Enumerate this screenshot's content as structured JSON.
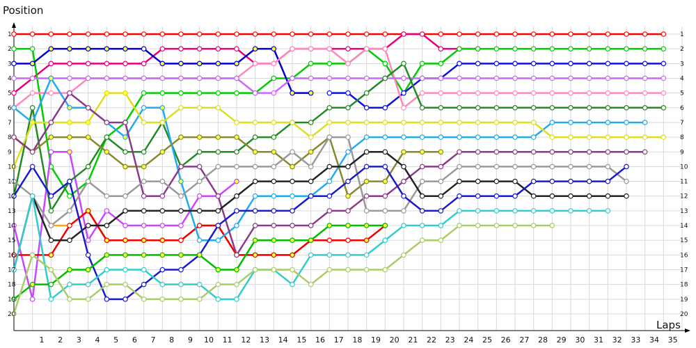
{
  "chart_data": {
    "type": "line",
    "ylabel": "Position",
    "xlabel": "Laps",
    "x_ticks": [
      1,
      2,
      3,
      4,
      5,
      6,
      7,
      8,
      9,
      10,
      11,
      12,
      13,
      14,
      15,
      16,
      17,
      18,
      19,
      20,
      21,
      22,
      23,
      24,
      25,
      26,
      27,
      28,
      29,
      30,
      31,
      32,
      33,
      34,
      35
    ],
    "y_ticks": [
      1,
      2,
      3,
      4,
      5,
      6,
      7,
      8,
      9,
      10,
      11,
      12,
      13,
      14,
      15,
      16,
      17,
      18,
      19,
      20
    ],
    "xlim": [
      0,
      36
    ],
    "ylim": [
      1,
      20
    ],
    "y_inverted": true,
    "grid": true,
    "colors": {
      "grid": "#d9d9d9",
      "marker_fill": "#ffffff",
      "pit_marker_fill": "#ffff44",
      "axis": "#000000"
    },
    "series": [
      {
        "color": "#ff0000",
        "values": [
          1,
          1,
          1,
          1,
          1,
          1,
          1,
          1,
          1,
          1,
          1,
          1,
          1,
          1,
          1,
          1,
          1,
          1,
          1,
          1,
          1,
          1,
          1,
          1,
          1,
          1,
          1,
          1,
          1,
          1,
          1,
          1,
          1,
          1,
          1,
          1
        ],
        "pit_laps": []
      },
      {
        "color": "#e6007a",
        "values": [
          5,
          4,
          3,
          3,
          3,
          3,
          3,
          3,
          2,
          2,
          2,
          2,
          2,
          3,
          3,
          2,
          2,
          2,
          2,
          2,
          2,
          1,
          1,
          2,
          2,
          2,
          null,
          null,
          null,
          null,
          null,
          null,
          null,
          null,
          null,
          null
        ],
        "pit_laps": []
      },
      {
        "color": "#00cc00",
        "values": [
          2,
          2,
          10,
          12,
          11,
          8,
          7,
          5,
          5,
          5,
          5,
          5,
          5,
          5,
          4,
          4,
          3,
          3,
          3,
          2,
          3,
          5,
          3,
          3,
          2,
          2,
          2,
          2,
          2,
          2,
          2,
          2,
          2,
          2,
          2,
          2
        ],
        "pit_laps": []
      },
      {
        "color": "#0000cc",
        "values": [
          3,
          3,
          2,
          2,
          2,
          2,
          2,
          2,
          3,
          3,
          3,
          3,
          3,
          2,
          2,
          5,
          5,
          null,
          null,
          null,
          null,
          null,
          null,
          null,
          null,
          null,
          null,
          null,
          null,
          null,
          null,
          null,
          null,
          null,
          null,
          null
        ],
        "pit_laps": [
          1,
          2,
          3,
          4,
          5,
          6,
          8,
          9,
          10,
          11,
          12,
          13,
          14,
          15,
          16
        ]
      },
      {
        "color": "#1010dd",
        "values": [
          null,
          null,
          null,
          null,
          null,
          null,
          null,
          null,
          null,
          null,
          null,
          null,
          null,
          null,
          null,
          null,
          null,
          5,
          5,
          6,
          6,
          5,
          4,
          4,
          3,
          3,
          3,
          3,
          3,
          3,
          3,
          3,
          3,
          3,
          3,
          3
        ],
        "pit_laps": []
      },
      {
        "color": "#ff88bb",
        "values": [
          6,
          5,
          5,
          5,
          4,
          4,
          4,
          4,
          4,
          4,
          4,
          4,
          4,
          3,
          3,
          2,
          2,
          2,
          3,
          2,
          2,
          6,
          5,
          5,
          5,
          5,
          5,
          5,
          5,
          5,
          5,
          5,
          5,
          5,
          5,
          5
        ],
        "pit_laps": []
      },
      {
        "color": "#cc66ff",
        "values": [
          4,
          4,
          4,
          4,
          4,
          4,
          4,
          4,
          4,
          4,
          4,
          4,
          4,
          5,
          5,
          4,
          4,
          4,
          4,
          4,
          4,
          4,
          4,
          4,
          4,
          4,
          4,
          4,
          4,
          4,
          4,
          4,
          4,
          4,
          4,
          4
        ],
        "pit_laps": []
      },
      {
        "color": "#cc44ff",
        "values": [
          14,
          19,
          9,
          9,
          15,
          13,
          14,
          14,
          14,
          14,
          12,
          12,
          11,
          null,
          null,
          null,
          null,
          null,
          null,
          null,
          null,
          null,
          null,
          null,
          null,
          null,
          null,
          null,
          null,
          null,
          null,
          null,
          null,
          null,
          null,
          null
        ],
        "pit_laps": [
          3,
          12
        ]
      },
      {
        "color": "#228b22",
        "values": [
          12,
          6,
          13,
          11,
          10,
          8,
          9,
          9,
          7,
          10,
          9,
          9,
          9,
          8,
          8,
          7,
          7,
          6,
          6,
          5,
          4,
          3,
          6,
          6,
          6,
          6,
          6,
          6,
          6,
          6,
          6,
          6,
          6,
          6,
          6,
          6
        ],
        "pit_laps": []
      },
      {
        "color": "#ffaa00",
        "values": [
          null,
          null,
          14,
          14,
          13,
          15,
          15,
          15,
          15,
          15,
          14,
          14,
          16,
          16,
          16,
          16,
          null,
          null,
          null,
          null,
          null,
          null,
          null,
          null,
          null,
          null,
          null,
          null,
          null,
          null,
          null,
          null,
          null,
          null,
          null,
          null
        ],
        "pit_laps": [
          1,
          2,
          3,
          4,
          5,
          6,
          7
        ]
      },
      {
        "color": "#ee0000",
        "values": [
          16,
          16,
          16,
          14,
          13,
          15,
          15,
          15,
          15,
          15,
          14,
          14,
          16,
          16,
          16,
          16,
          15,
          15,
          15,
          15,
          14,
          null,
          null,
          null,
          null,
          null,
          null,
          null,
          null,
          null,
          null,
          null,
          null,
          null,
          null,
          null
        ],
        "pit_laps": [
          2,
          4,
          5,
          6,
          7,
          8,
          12,
          13,
          14,
          15,
          16,
          19,
          20,
          21
        ]
      },
      {
        "color": "#22aaee",
        "values": [
          6,
          7,
          4,
          6,
          6,
          7,
          8,
          6,
          6,
          11,
          15,
          15,
          14,
          12,
          12,
          12,
          12,
          11,
          9,
          8,
          8,
          8,
          8,
          8,
          8,
          8,
          8,
          8,
          8,
          7,
          7,
          7,
          7,
          7,
          7,
          null
        ],
        "pit_laps": [
          1,
          2,
          3,
          4,
          6,
          8,
          9
        ]
      },
      {
        "color": "#dddd22",
        "values": [
          10,
          7,
          7,
          7,
          7,
          5,
          5,
          7,
          7,
          6,
          6,
          6,
          7,
          7,
          7,
          7,
          8,
          7,
          7,
          7,
          7,
          7,
          7,
          7,
          7,
          7,
          7,
          7,
          7,
          8,
          8,
          8,
          8,
          8,
          8,
          8
        ],
        "pit_laps": [
          1,
          2,
          3,
          4,
          5,
          6
        ]
      },
      {
        "color": "#888833",
        "values": [
          8,
          9,
          8,
          8,
          8,
          9,
          10,
          10,
          9,
          8,
          8,
          8,
          8,
          9,
          9,
          10,
          9,
          8,
          12,
          11,
          11,
          9,
          9,
          9,
          null,
          null,
          null,
          null,
          null,
          null,
          null,
          null,
          null,
          null,
          null,
          null
        ],
        "pit_laps": [
          1,
          2,
          3,
          4,
          5,
          6,
          7,
          8,
          9,
          10,
          11,
          12,
          13,
          14,
          15,
          16,
          17,
          18,
          19,
          20,
          21,
          22,
          23,
          24
        ]
      },
      {
        "color": "#8b3a8b",
        "values": [
          8,
          9,
          7,
          5,
          6,
          7,
          7,
          12,
          12,
          10,
          10,
          12,
          16,
          14,
          14,
          14,
          14,
          13,
          13,
          12,
          12,
          11,
          10,
          10,
          9,
          9,
          9,
          9,
          9,
          9,
          9,
          9,
          9,
          9,
          9,
          null
        ],
        "pit_laps": []
      },
      {
        "color": "#999999",
        "values": [
          11,
          12,
          14,
          13,
          11,
          12,
          12,
          11,
          11,
          12,
          11,
          10,
          10,
          10,
          10,
          9,
          10,
          8,
          8,
          13,
          13,
          13,
          11,
          11,
          10,
          10,
          10,
          10,
          10,
          10,
          10,
          10,
          10,
          11,
          null,
          null
        ],
        "pit_laps": []
      },
      {
        "color": "#222222",
        "values": [
          17,
          12,
          15,
          15,
          14,
          14,
          13,
          13,
          13,
          13,
          13,
          13,
          12,
          11,
          11,
          11,
          11,
          10,
          10,
          9,
          9,
          10,
          12,
          12,
          11,
          11,
          11,
          11,
          12,
          12,
          12,
          12,
          12,
          12,
          null,
          null
        ],
        "pit_laps": []
      },
      {
        "color": "#1a1acc",
        "values": [
          12,
          10,
          12,
          11,
          16,
          19,
          19,
          18,
          17,
          17,
          16,
          14,
          13,
          13,
          13,
          13,
          12,
          12,
          11,
          10,
          10,
          12,
          13,
          13,
          12,
          12,
          12,
          12,
          11,
          11,
          11,
          11,
          11,
          10,
          null,
          null
        ],
        "pit_laps": []
      },
      {
        "color": "#33cccc",
        "values": [
          17,
          12,
          19,
          18,
          18,
          17,
          17,
          17,
          18,
          18,
          18,
          19,
          19,
          17,
          17,
          18,
          16,
          16,
          16,
          16,
          15,
          14,
          14,
          14,
          13,
          13,
          13,
          13,
          13,
          13,
          13,
          13,
          13,
          null,
          null,
          null
        ],
        "pit_laps": []
      },
      {
        "color": "#00bb00",
        "values": [
          19,
          18,
          18,
          17,
          17,
          16,
          16,
          16,
          16,
          16,
          16,
          17,
          17,
          15,
          15,
          15,
          15,
          14,
          14,
          14,
          14,
          null,
          null,
          null,
          null,
          null,
          null,
          null,
          null,
          null,
          null,
          null,
          null,
          null,
          null,
          null
        ],
        "pit_laps": [
          1,
          3,
          4,
          5,
          6,
          7,
          8,
          9,
          10,
          11,
          12,
          13,
          14,
          15,
          16,
          17,
          18,
          19,
          20,
          21
        ]
      },
      {
        "color": "#aacc66",
        "values": [
          20,
          16,
          17,
          19,
          19,
          18,
          18,
          19,
          19,
          19,
          19,
          18,
          18,
          17,
          17,
          17,
          18,
          17,
          17,
          17,
          17,
          16,
          15,
          15,
          14,
          14,
          14,
          14,
          14,
          14,
          null,
          null,
          null,
          null,
          null,
          null
        ],
        "pit_laps": []
      }
    ]
  }
}
